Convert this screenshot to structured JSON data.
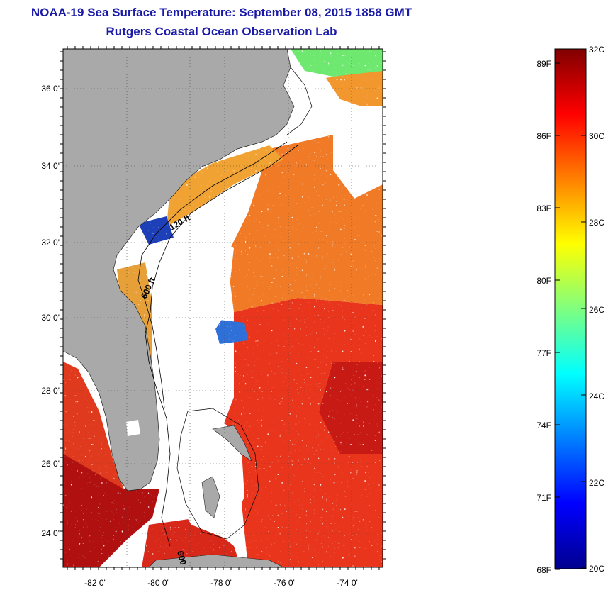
{
  "header": {
    "title": "NOAA-19 Sea Surface Temperature:  September 08, 2015 1858 GMT",
    "subtitle": "Rutgers Coastal Ocean Observation Lab"
  },
  "map": {
    "lat_labels": [
      "36 0'",
      "34 0'",
      "32 0'",
      "30 0'",
      "28 0'",
      "26 0'",
      "24 0'"
    ],
    "lon_labels": [
      "-82 0'",
      "-80 0'",
      "-78 0'",
      "-76 0'",
      "-74 0'"
    ],
    "contour_labels": [
      "120 ft",
      "600 ft",
      "600 ft"
    ],
    "colors": {
      "land": "#a9a9a9",
      "cloud": "#ffffff",
      "warm": "#e8351c",
      "hot": "#b80f0f",
      "orange": "#f08c2a",
      "cool": "#2f6fd8"
    }
  },
  "colorbar": {
    "f_labels": [
      "89F",
      "86F",
      "83F",
      "80F",
      "77F",
      "74F",
      "71F",
      "68F"
    ],
    "c_labels": [
      "32C",
      "30C",
      "28C",
      "26C",
      "24C",
      "22C",
      "20C"
    ]
  }
}
